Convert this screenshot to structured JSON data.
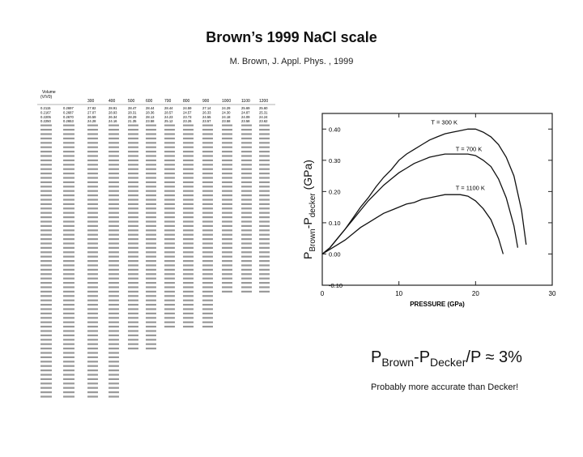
{
  "slide": {
    "title": "Brown’s 1999 NaCl scale",
    "subtitle": "M. Brown, J. Appl. Phys. , 1999",
    "y_label_p": "P",
    "y_label_sub1": "Brown",
    "y_label_mid": "-P",
    "y_label_sub2": "decker",
    "y_label_unit": " (GPa)",
    "caption_p": "P",
    "caption_sub1": "Brown",
    "caption_mid": "-P",
    "caption_sub2": "Decker",
    "caption_tail": "/P ≈ 3%",
    "note": "Probably more accurate than Decker!"
  },
  "table": {
    "header_row1": "Volume",
    "header_row2": "(V/V0)",
    "columns": [
      "",
      "300",
      "400",
      "500",
      "600",
      "700",
      "800",
      "900",
      "1000",
      "1100",
      "1200"
    ],
    "first_rows": [
      [
        "0.2115",
        "0.2697",
        "27.82",
        "28.91",
        "28.47",
        "28.44",
        "28.44",
        "24.59",
        "27.14",
        "24.29",
        "25.69",
        "25.60"
      ],
      [
        "0.2167",
        "0.2687",
        "27.07",
        "28.93",
        "28.31",
        "28.36",
        "28.57",
        "24.57",
        "26.33",
        "24.30",
        "24.87",
        "25.31"
      ],
      [
        "0.2205",
        "0.2670",
        "26.59",
        "26.34",
        "28.29",
        "28.13",
        "24.23",
        "23.73",
        "24.55",
        "24.18",
        "24.09",
        "24.24"
      ],
      [
        "0.2250",
        "0.2653",
        "24.28",
        "24.16",
        "21.35",
        "23.58",
        "25.12",
        "23.26",
        "23.57",
        "23.58",
        "23.58",
        "23.62"
      ]
    ]
  },
  "chart_data": {
    "type": "line",
    "title": "",
    "xlabel": "PRESSURE (GPa)",
    "ylabel": "PBrown-Pdecker (GPa)",
    "xlim": [
      0,
      30
    ],
    "ylim": [
      -0.1,
      0.45
    ],
    "x_ticks": [
      0,
      10,
      20,
      30
    ],
    "y_ticks": [
      -0.1,
      0.0,
      0.1,
      0.2,
      0.3,
      0.4
    ],
    "y_tick_labels": [
      "-0.10",
      "0.00",
      "0.10",
      "0.20",
      "0.30",
      "0.40"
    ],
    "x_tick_labels": [
      "0",
      "10",
      "20",
      "30"
    ],
    "grid": false,
    "series": [
      {
        "name": "T = 300 K",
        "x": [
          0,
          1,
          2,
          3,
          4,
          5,
          6,
          7,
          8,
          9,
          10,
          11,
          12,
          13,
          14,
          15,
          16,
          17,
          18,
          19,
          20,
          21,
          22,
          23,
          24,
          25,
          26,
          26.6
        ],
        "y": [
          0.0,
          0.02,
          0.05,
          0.08,
          0.115,
          0.15,
          0.18,
          0.215,
          0.245,
          0.27,
          0.3,
          0.32,
          0.335,
          0.35,
          0.365,
          0.375,
          0.385,
          0.39,
          0.395,
          0.4,
          0.4,
          0.39,
          0.375,
          0.35,
          0.31,
          0.25,
          0.14,
          0.03
        ]
      },
      {
        "name": "T = 700 K",
        "x": [
          0,
          1,
          2,
          3,
          4,
          5,
          6,
          7,
          8,
          9,
          10,
          11,
          12,
          13,
          14,
          15,
          16,
          17,
          18,
          19,
          20,
          21,
          22,
          23,
          24,
          25,
          25.5
        ],
        "y": [
          0.0,
          0.02,
          0.05,
          0.08,
          0.11,
          0.14,
          0.17,
          0.195,
          0.22,
          0.24,
          0.26,
          0.275,
          0.29,
          0.3,
          0.31,
          0.315,
          0.32,
          0.32,
          0.32,
          0.32,
          0.315,
          0.3,
          0.28,
          0.24,
          0.18,
          0.09,
          0.02
        ]
      },
      {
        "name": "T = 1100 K",
        "x": [
          0,
          1,
          2,
          3,
          4,
          5,
          6,
          7,
          8,
          9,
          10,
          11,
          12,
          13,
          14,
          15,
          16,
          17,
          18,
          19,
          20,
          21,
          22,
          23,
          23.6
        ],
        "y": [
          0.0,
          0.015,
          0.03,
          0.045,
          0.065,
          0.085,
          0.1,
          0.115,
          0.13,
          0.14,
          0.15,
          0.16,
          0.165,
          0.175,
          0.18,
          0.185,
          0.19,
          0.19,
          0.19,
          0.185,
          0.17,
          0.145,
          0.11,
          0.05,
          0.0
        ]
      }
    ]
  }
}
